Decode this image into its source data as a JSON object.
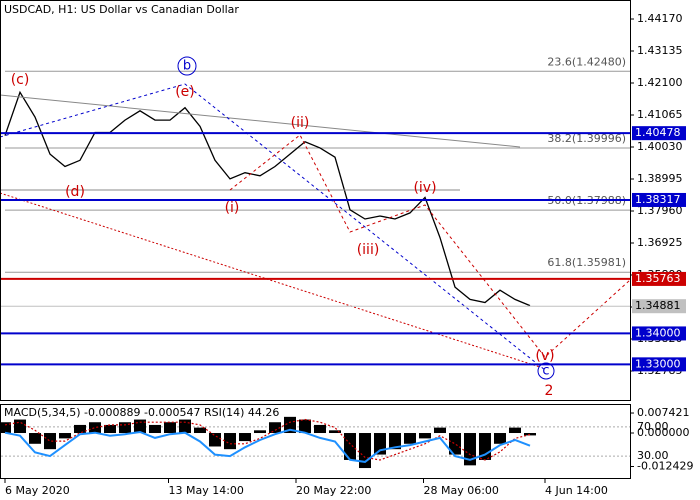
{
  "chart_data": [
    {
      "type": "line",
      "title": "USDCAD, H1:  US Dollar vs Canadian Dollar",
      "values": [
        1.404,
        1.418,
        1.41,
        1.398,
        1.394,
        1.396,
        1.405,
        1.405,
        1.409,
        1.412,
        1.409,
        1.409,
        1.413,
        1.407,
        1.396,
        1.39,
        1.392,
        1.391,
        1.394,
        1.398,
        1.402,
        1.4,
        1.397,
        1.38,
        1.377,
        1.378,
        1.377,
        1.379,
        1.384,
        1.371,
        1.355,
        1.351,
        1.35,
        1.354,
        1.351,
        1.349
      ],
      "color": "#000000",
      "xlim": [
        0,
        41.667
      ],
      "xticks": [
        {
          "value": 0,
          "label": "6 May 2020"
        },
        {
          "value": 10.9,
          "label": "13 May 14:00"
        },
        {
          "value": 19.4,
          "label": "20 May 22:00"
        },
        {
          "value": 27.9,
          "label": "28 May 06:00"
        },
        {
          "value": 36,
          "label": "4 Jun 14:00"
        }
      ],
      "ylim": [
        1.31847,
        1.44785
      ],
      "yticks": [
        {
          "value": 1.4417,
          "label": "1.44170"
        },
        1.43135,
        {
          "value": 1.421,
          "label": "1.42100"
        },
        1.41065,
        {
          "value": 1.4003,
          "label": "1.40030"
        },
        1.38995,
        {
          "value": 1.3796,
          "label": "1.37960"
        },
        1.36925,
        {
          "value": 1.3589,
          "label": "1.35890"
        },
        1.34855,
        {
          "value": 1.3382,
          "label": "1.33820"
        },
        1.32785
      ],
      "levels": [
        {
          "value": 1.40478,
          "color": "#0000cc"
        },
        {
          "value": 1.38317,
          "color": "#0000cc"
        },
        {
          "value": 1.35763,
          "color": "#cc0000"
        },
        {
          "value": 1.34881,
          "color": "#c0c0c0"
        },
        {
          "value": 1.34,
          "label": "1.34000",
          "color": "#0000cc"
        },
        {
          "value": 1.33,
          "label": "1.33000",
          "color": "#0000cc"
        }
      ],
      "fibonacci": [
        {
          "value": 1.4248,
          "label": "23.6(1.42480)"
        },
        {
          "value": 1.39996,
          "label": "38.2(1.39996)"
        },
        {
          "value": 1.37988,
          "label": "50.0(1.37988)"
        },
        {
          "value": 1.35981,
          "label": "61.8(1.35981)"
        }
      ],
      "annotations": [
        "(c)",
        "(e)",
        "b",
        "(d)",
        "(i)",
        "(ii)",
        "(iii)",
        "(iv)",
        "(v)",
        "c",
        "2"
      ]
    },
    {
      "type": "indicator",
      "title": "MACD(5,34,5) -0.000889 -0.000547 RSI(14) 44.26",
      "series": [
        {
          "name": "MACD",
          "color": "#000000",
          "values": [
            0.004,
            0.005,
            -0.004,
            -0.006,
            -0.002,
            0.003,
            0.004,
            0.003,
            0.004,
            0.005,
            0.003,
            0.004,
            0.005,
            0.002,
            -0.005,
            -0.006,
            -0.003,
            0.001,
            0.004,
            0.006,
            0.005,
            0.003,
            0.001,
            -0.01,
            -0.013,
            -0.008,
            -0.006,
            -0.004,
            -0.002,
            0.002,
            -0.008,
            -0.012,
            -0.01,
            -0.004,
            0.002,
            -0.000889
          ]
        },
        {
          "name": "Signal",
          "color": "#cc0000",
          "values": [
            0.003,
            0.004,
            0.001,
            -0.003,
            -0.003,
            0,
            0.002,
            0.003,
            0.003,
            0.004,
            0.004,
            0.004,
            0.004,
            0.003,
            -0.001,
            -0.004,
            -0.004,
            -0.002,
            0.001,
            0.004,
            0.005,
            0.004,
            0.002,
            -0.004,
            -0.009,
            -0.01,
            -0.008,
            -0.006,
            -0.004,
            -0.001,
            -0.004,
            -0.008,
            -0.01,
            -0.007,
            -0.002,
            -0.000547
          ]
        },
        {
          "name": "RSI",
          "color": "#1e90ff",
          "axis": "y2",
          "values": [
            62,
            58,
            35,
            30,
            45,
            60,
            62,
            58,
            60,
            63,
            55,
            60,
            62,
            50,
            32,
            30,
            42,
            52,
            60,
            66,
            62,
            55,
            50,
            25,
            22,
            38,
            42,
            45,
            50,
            55,
            30,
            25,
            32,
            45,
            52,
            44.26
          ]
        }
      ],
      "ylim": [
        -0.0167,
        0.0104
      ],
      "yticks": [
        0.007421,
        {
          "value": 0,
          "label": "0.000000"
        },
        -0.012429
      ],
      "y2lim": [
        0,
        100
      ],
      "y2ticks": [
        {
          "value": 70,
          "label": "70.00"
        },
        {
          "value": 30,
          "label": "30.00"
        }
      ]
    }
  ]
}
